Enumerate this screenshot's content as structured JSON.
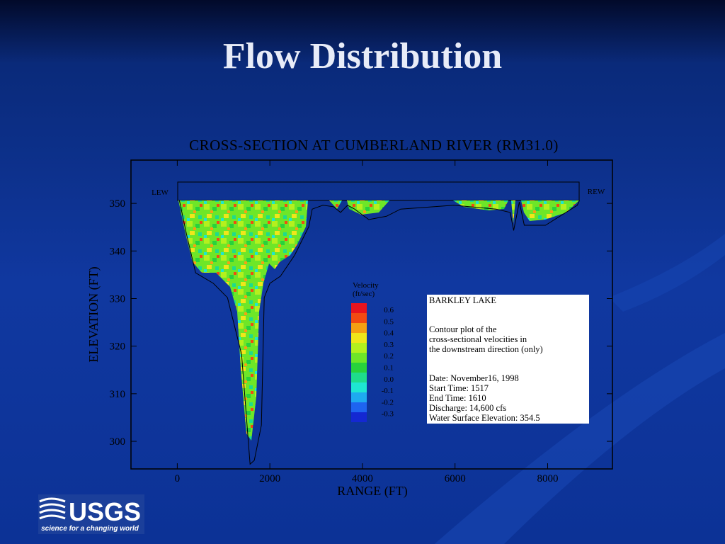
{
  "slide_title": "Flow Distribution",
  "chart_data": {
    "type": "contour",
    "title": "CROSS-SECTION AT CUMBERLAND RIVER (RM31.0)",
    "xlabel": "RANGE (FT)",
    "ylabel": "ELEVATION (FT)",
    "xlim": [
      -1000,
      9400
    ],
    "ylim": [
      294.2,
      359.1
    ],
    "xticks": [
      0,
      2000,
      4000,
      6000,
      8000
    ],
    "yticks": [
      300,
      310,
      320,
      330,
      340,
      350
    ],
    "annotations": [
      "LEW",
      "REW"
    ],
    "bed_profile": {
      "x": [
        46,
        198,
        397,
        779,
        1084,
        1389,
        1573,
        1664,
        1817,
        1878,
        2000,
        2229,
        2534,
        2840,
        2916,
        3145,
        3374,
        3527,
        3679,
        3832,
        4137,
        4519,
        4824,
        5969,
        6885,
        7191,
        7267,
        7389,
        7496,
        7954,
        8641,
        8687
      ],
      "values": [
        350.6,
        343.6,
        335.4,
        333.2,
        330.2,
        318.3,
        295.2,
        296.0,
        303.4,
        330.2,
        333.2,
        334.7,
        339.1,
        345.1,
        348.8,
        349.6,
        349.3,
        348.1,
        349.6,
        348.8,
        346.6,
        347.3,
        348.8,
        349.6,
        348.8,
        348.1,
        344.3,
        350.3,
        345.4,
        345.4,
        349.6,
        350.6
      ]
    },
    "colorbar": {
      "title": [
        "Velocity",
        "(ft/sec)"
      ],
      "colors": [
        "#e8141e",
        "#f24a12",
        "#f5a013",
        "#f0e61a",
        "#b4f01e",
        "#6ee628",
        "#28d23c",
        "#1edc8c",
        "#1ee6d2",
        "#1eaaf0",
        "#1e64f0",
        "#1428d2"
      ],
      "levels": [
        0.6,
        0.5,
        0.4,
        0.3,
        0.2,
        0.1,
        {
          "value": 0,
          "label": "0.0"
        },
        -0.1,
        -0.2,
        -0.3
      ]
    },
    "info_box": [
      "BARKLEY LAKE",
      "Contour plot of the",
      "cross-sectional velocities in",
      "the downstream direction (only)",
      "Date: November16, 1998",
      "Start Time: 1517",
      "End Time: 1610",
      "Discharge: 14,600 cfs",
      "Water Surface Elevation: 354.5"
    ]
  },
  "logo": {
    "name": "USGS",
    "tagline": "science for a changing world"
  }
}
